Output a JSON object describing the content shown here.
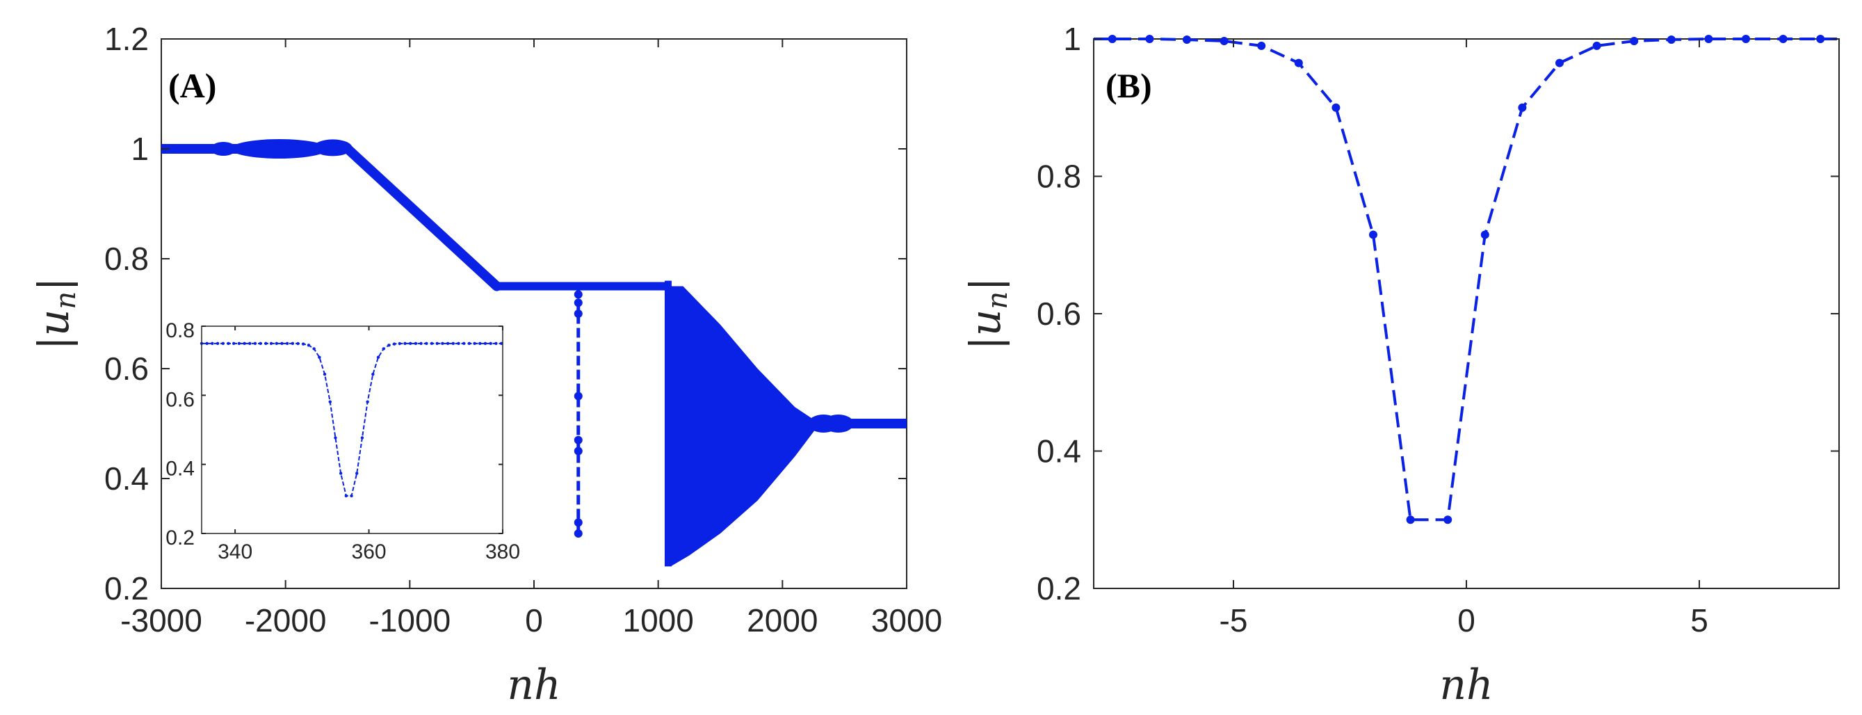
{
  "colors": {
    "series": "#0a22e6",
    "axis": "#262626"
  },
  "chart_data": [
    {
      "type": "scatter",
      "panel_label": "(A)",
      "title": "",
      "xlabel": "nh",
      "ylabel": "|u_n|",
      "xlim": [
        -3000,
        3000
      ],
      "ylim": [
        0.2,
        1.2
      ],
      "xticks": [
        -3000,
        -2000,
        -1000,
        0,
        1000,
        2000,
        3000
      ],
      "yticks": [
        0.2,
        0.4,
        0.6,
        0.8,
        1,
        1.2
      ],
      "xtick_labels": [
        "-3000",
        "-2000",
        "-1000",
        "0",
        "1000",
        "2000",
        "3000"
      ],
      "ytick_labels": [
        "0.2",
        "0.4",
        "0.6",
        "0.8",
        "1",
        "1.2"
      ],
      "series": [
        {
          "values_description_free": true,
          "segments": {
            "plateau_high": {
              "x": [
                -3000,
                -1500
              ],
              "y": 1.0
            },
            "ramp": {
              "x": [
                -1500,
                -300
              ],
              "y": [
                1.0,
                0.75
              ]
            },
            "plateau_mid": {
              "x": [
                -300,
                1080
              ],
              "y": 0.75
            },
            "fan": {
              "x": [
                1080,
                2300
              ],
              "y_lower": [
                0.24,
                0.5
              ],
              "y_upper": [
                0.75,
                0.5
              ]
            },
            "plateau_low": {
              "x": [
                2300,
                3000
              ],
              "y": 0.5
            }
          },
          "dip": {
            "x": 357,
            "y_min": 0.3
          }
        }
      ],
      "inset": {
        "xlim": [
          335,
          380
        ],
        "ylim": [
          0.2,
          0.8
        ],
        "xticks": [
          340,
          360,
          380
        ],
        "yticks": [
          0.2,
          0.4,
          0.6,
          0.8
        ],
        "xtick_labels": [
          "340",
          "360",
          "380"
        ],
        "ytick_labels": [
          "0.2",
          "0.4",
          "0.6",
          "0.8"
        ],
        "baseline": 0.75,
        "dip_center": 357,
        "dip_min": 0.3
      }
    },
    {
      "type": "line",
      "panel_label": "(B)",
      "title": "",
      "xlabel": "nh",
      "ylabel": "|u_n|",
      "xlim": [
        -8,
        8
      ],
      "ylim": [
        0.2,
        1.0
      ],
      "xticks": [
        -5,
        0,
        5
      ],
      "yticks": [
        0.2,
        0.4,
        0.6,
        0.8,
        1
      ],
      "xtick_labels": [
        "-5",
        "0",
        "5"
      ],
      "ytick_labels": [
        "0.2",
        "0.4",
        "0.6",
        "0.8",
        "1"
      ],
      "series": [
        {
          "x": [
            -8.0,
            -7.6,
            -6.8,
            -6.0,
            -5.2,
            -4.4,
            -3.6,
            -2.8,
            -2.0,
            -1.2,
            -0.4,
            0.4,
            1.2,
            2.0,
            2.8,
            3.6,
            4.4,
            5.2,
            6.0,
            6.8,
            7.6,
            8.0
          ],
          "y": [
            1.0,
            1.0,
            1.0,
            0.999,
            0.997,
            0.99,
            0.965,
            0.9,
            0.715,
            0.3,
            0.3,
            0.715,
            0.9,
            0.965,
            0.99,
            0.997,
            0.999,
            1.0,
            1.0,
            1.0,
            1.0,
            1.0
          ]
        }
      ]
    }
  ]
}
